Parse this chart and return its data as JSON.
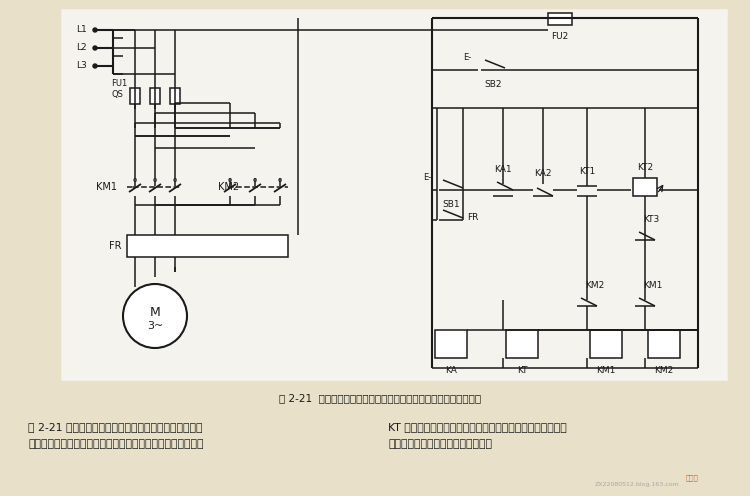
{
  "bg_color": "#e8e0c8",
  "line_color": "#1a1a1a",
  "circuit_bg": "#f5f3ee",
  "title": "图 2-21  晶体管时间继电器控制的按周期自动重复可逆运行控制线路",
  "text_left": "图 2-21 所示为采用新型脉动型晶体管时间继电器控制的\n按周期自动重复可逆运行的控制线路。该线路中的时间继电器",
  "text_right": "KT 能按两种时间规律作往复动作，因而只需用一只这样的时\n间继电器就可以达到可逆重复运行。",
  "fig_width": 7.5,
  "fig_height": 4.96,
  "dpi": 100
}
